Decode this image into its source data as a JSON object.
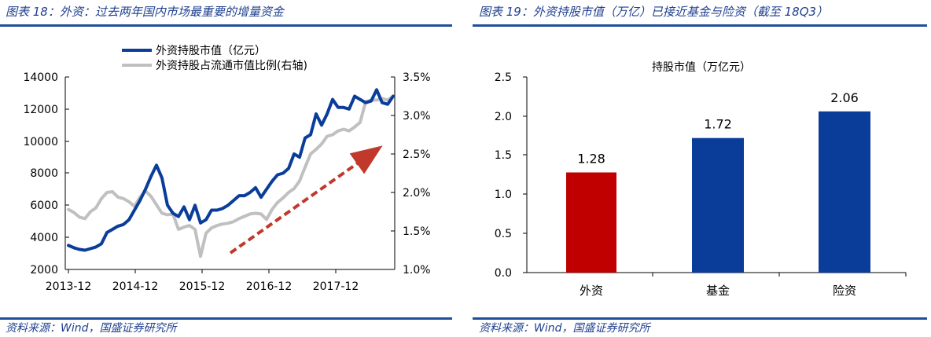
{
  "left_panel": {
    "title": "图表 18：外资：过去两年国内市场最重要的增量资金",
    "source": "资料来源：Wind，国盛证券研究所"
  },
  "right_panel": {
    "title": "图表 19：外资持股市值（万亿）已接近基金与险资（截至 18Q3）",
    "source": "资料来源：Wind，国盛证券研究所"
  },
  "colors": {
    "primary": "#0a3d9a",
    "secondary": "#c0c0c0",
    "red": "#c00000",
    "arrow": "#c0392b",
    "rule": "#1f4e9a"
  },
  "chart_data": [
    {
      "type": "line",
      "title": "",
      "legend_position": "top",
      "x_ticks": [
        "2013-12",
        "2014-12",
        "2015-12",
        "2016-12",
        "2017-12"
      ],
      "x_range": [
        0,
        59
      ],
      "x_tick_index": [
        0,
        12,
        24,
        36,
        48
      ],
      "y_left": {
        "ticks": [
          "14000",
          "12000",
          "10000",
          "8000",
          "6000",
          "4000",
          "2000"
        ],
        "range": [
          2000,
          14000
        ]
      },
      "y_right": {
        "ticks": [
          "3.5%",
          "3.0%",
          "2.5%",
          "2.0%",
          "1.5%",
          "1.0%"
        ],
        "range": [
          1.0,
          3.5
        ]
      },
      "series": [
        {
          "name": "外资持股市值（亿元）",
          "axis": "left",
          "values": [
            3500,
            3350,
            3250,
            3200,
            3300,
            3400,
            3600,
            4300,
            4500,
            4700,
            4800,
            5100,
            5700,
            6300,
            7000,
            7800,
            8500,
            7700,
            6000,
            5500,
            5300,
            5900,
            5100,
            6000,
            4900,
            5100,
            5700,
            5700,
            5800,
            6000,
            6300,
            6600,
            6600,
            6800,
            7100,
            6500,
            7000,
            7500,
            7900,
            8000,
            8300,
            9200,
            9000,
            10200,
            10400,
            11700,
            11000,
            11700,
            12600,
            12100,
            12100,
            12000,
            12800,
            12600,
            12400,
            12500,
            13200,
            12400,
            12300,
            12800
          ]
        },
        {
          "name": "外资持股占流通市值比例(右轴)",
          "axis": "right",
          "values": [
            1.78,
            1.74,
            1.68,
            1.66,
            1.75,
            1.8,
            1.92,
            2.0,
            2.01,
            1.94,
            1.92,
            1.88,
            1.82,
            1.94,
            2.02,
            1.95,
            1.84,
            1.73,
            1.71,
            1.72,
            1.52,
            1.55,
            1.57,
            1.52,
            1.17,
            1.47,
            1.54,
            1.57,
            1.59,
            1.6,
            1.62,
            1.66,
            1.69,
            1.72,
            1.73,
            1.72,
            1.65,
            1.78,
            1.87,
            1.93,
            2.0,
            2.05,
            2.15,
            2.33,
            2.5,
            2.56,
            2.63,
            2.73,
            2.75,
            2.8,
            2.82,
            2.8,
            2.85,
            2.91,
            3.18,
            3.2,
            3.2,
            3.22,
            3.2,
            3.25
          ]
        }
      ],
      "annotations": [
        {
          "type": "arrow",
          "description": "rising trend arrow"
        }
      ]
    },
    {
      "type": "bar",
      "title": "持股市值（万亿元）",
      "xlabel": "",
      "ylabel": "",
      "categories": [
        "外资",
        "基金",
        "险资"
      ],
      "values": [
        1.28,
        1.72,
        2.06
      ],
      "value_labels": [
        "1.28",
        "1.72",
        "2.06"
      ],
      "bar_colors": [
        "#c00000",
        "#0a3d9a",
        "#0a3d9a"
      ],
      "ylim": [
        0.0,
        2.5
      ],
      "y_ticks": [
        "2.5",
        "2.0",
        "1.5",
        "1.0",
        "0.5",
        "0.0"
      ]
    }
  ]
}
